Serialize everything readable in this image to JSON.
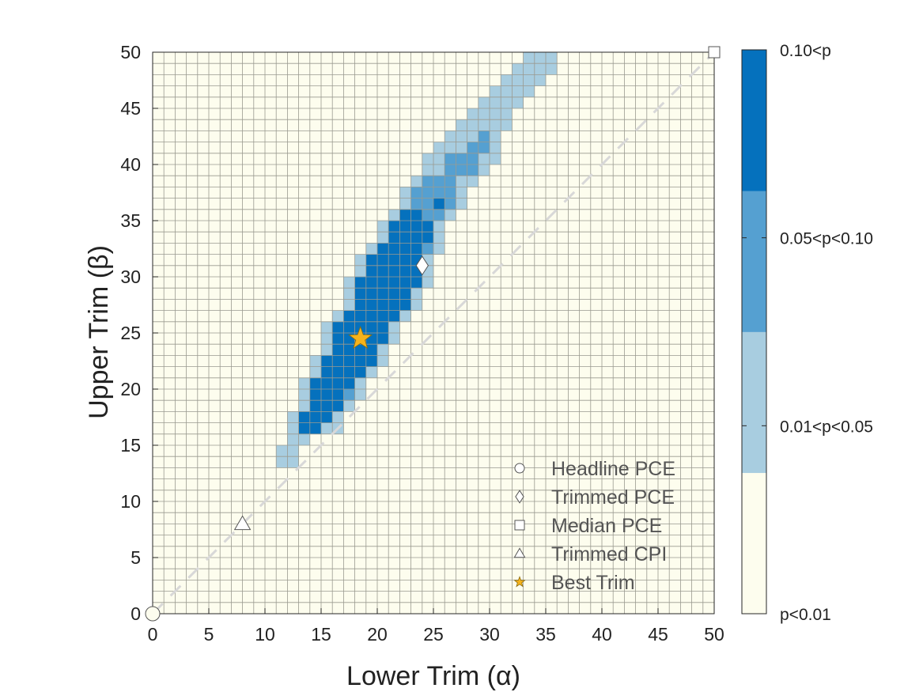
{
  "chart_data": {
    "type": "heatmap",
    "xlabel": "Lower Trim (α)",
    "ylabel": "Upper Trim (β)",
    "xlim": [
      0,
      50
    ],
    "ylim": [
      0,
      50
    ],
    "xticks": [
      "0",
      "5",
      "10",
      "15",
      "20",
      "25",
      "30",
      "35",
      "40",
      "45",
      "50"
    ],
    "yticks": [
      "0",
      "5",
      "10",
      "15",
      "20",
      "25",
      "30",
      "35",
      "40",
      "45",
      "50"
    ],
    "grid_step": 1,
    "colorbar": {
      "levels": [
        {
          "label": "p<0.01",
          "color": "#fdfdee"
        },
        {
          "label": "0.01<p<0.05",
          "color": "#a8cde0"
        },
        {
          "label": "0.05<p<0.10",
          "color": "#55a0d1"
        },
        {
          "label": "0.10<p",
          "color": "#0571bd"
        }
      ]
    },
    "cells": {
      "note": "row y (upper trim) -> list of [x_start, x_end, level] runs; unlisted cells are level 0",
      "13": [
        [
          11,
          12,
          1
        ]
      ],
      "14": [
        [
          11,
          12,
          1
        ]
      ],
      "15": [
        [
          12,
          13,
          1
        ]
      ],
      "16": [
        [
          12,
          12,
          1
        ],
        [
          13,
          14,
          3
        ],
        [
          15,
          16,
          1
        ]
      ],
      "17": [
        [
          12,
          12,
          1
        ],
        [
          13,
          15,
          3
        ],
        [
          16,
          16,
          1
        ]
      ],
      "18": [
        [
          13,
          13,
          1
        ],
        [
          14,
          16,
          3
        ],
        [
          17,
          17,
          1
        ]
      ],
      "19": [
        [
          13,
          13,
          1
        ],
        [
          14,
          16,
          3
        ],
        [
          17,
          17,
          2
        ],
        [
          18,
          18,
          1
        ]
      ],
      "20": [
        [
          13,
          13,
          1
        ],
        [
          14,
          17,
          3
        ],
        [
          18,
          18,
          1
        ]
      ],
      "21": [
        [
          14,
          14,
          1
        ],
        [
          15,
          18,
          3
        ],
        [
          19,
          19,
          1
        ]
      ],
      "22": [
        [
          14,
          14,
          1
        ],
        [
          15,
          19,
          3
        ],
        [
          20,
          20,
          1
        ]
      ],
      "23": [
        [
          15,
          15,
          1
        ],
        [
          16,
          19,
          3
        ],
        [
          20,
          20,
          1
        ]
      ],
      "24": [
        [
          15,
          15,
          1
        ],
        [
          16,
          20,
          3
        ],
        [
          21,
          21,
          1
        ]
      ],
      "25": [
        [
          15,
          15,
          1
        ],
        [
          16,
          20,
          3
        ],
        [
          21,
          21,
          1
        ]
      ],
      "26": [
        [
          16,
          16,
          1
        ],
        [
          17,
          21,
          3
        ],
        [
          22,
          22,
          1
        ]
      ],
      "27": [
        [
          17,
          17,
          1
        ],
        [
          18,
          22,
          3
        ],
        [
          23,
          23,
          1
        ]
      ],
      "28": [
        [
          17,
          17,
          1
        ],
        [
          18,
          22,
          3
        ],
        [
          23,
          23,
          1
        ]
      ],
      "29": [
        [
          17,
          17,
          1
        ],
        [
          18,
          23,
          3
        ],
        [
          24,
          24,
          1
        ]
      ],
      "30": [
        [
          18,
          18,
          1
        ],
        [
          19,
          23,
          3
        ],
        [
          24,
          24,
          1
        ]
      ],
      "31": [
        [
          18,
          18,
          1
        ],
        [
          19,
          23,
          3
        ],
        [
          24,
          24,
          1
        ]
      ],
      "32": [
        [
          19,
          19,
          1
        ],
        [
          20,
          23,
          3
        ],
        [
          24,
          24,
          2
        ],
        [
          25,
          25,
          1
        ]
      ],
      "33": [
        [
          20,
          20,
          1
        ],
        [
          21,
          24,
          3
        ],
        [
          25,
          25,
          1
        ]
      ],
      "34": [
        [
          20,
          20,
          1
        ],
        [
          21,
          24,
          3
        ],
        [
          25,
          25,
          1
        ]
      ],
      "35": [
        [
          21,
          21,
          1
        ],
        [
          22,
          23,
          3
        ],
        [
          24,
          25,
          2
        ],
        [
          26,
          26,
          1
        ]
      ],
      "36": [
        [
          22,
          22,
          1
        ],
        [
          23,
          24,
          2
        ],
        [
          25,
          25,
          3
        ],
        [
          26,
          26,
          2
        ],
        [
          27,
          27,
          1
        ]
      ],
      "37": [
        [
          22,
          22,
          1
        ],
        [
          23,
          26,
          2
        ],
        [
          27,
          27,
          1
        ]
      ],
      "38": [
        [
          23,
          23,
          1
        ],
        [
          24,
          26,
          2
        ],
        [
          27,
          28,
          1
        ]
      ],
      "39": [
        [
          24,
          25,
          1
        ],
        [
          26,
          28,
          2
        ],
        [
          29,
          29,
          1
        ]
      ],
      "40": [
        [
          24,
          25,
          1
        ],
        [
          26,
          28,
          2
        ],
        [
          29,
          30,
          1
        ]
      ],
      "41": [
        [
          25,
          27,
          1
        ],
        [
          28,
          29,
          2
        ],
        [
          30,
          30,
          1
        ]
      ],
      "42": [
        [
          26,
          28,
          1
        ],
        [
          29,
          29,
          2
        ],
        [
          30,
          30,
          1
        ]
      ],
      "43": [
        [
          27,
          31,
          1
        ]
      ],
      "44": [
        [
          28,
          31,
          1
        ]
      ],
      "45": [
        [
          29,
          32,
          1
        ]
      ],
      "46": [
        [
          30,
          33,
          1
        ]
      ],
      "47": [
        [
          31,
          34,
          1
        ]
      ],
      "48": [
        [
          32,
          35,
          1
        ]
      ],
      "49": [
        [
          33,
          35,
          1
        ]
      ]
    },
    "diagonal_line": {
      "from": [
        0,
        0
      ],
      "to": [
        50,
        50
      ],
      "style": "dashed",
      "color": "#d8d8d8"
    },
    "markers": [
      {
        "name": "Headline PCE",
        "shape": "circle",
        "x": 0,
        "y": 0,
        "fill": "#fdfdee"
      },
      {
        "name": "Trimmed PCE",
        "shape": "diamond",
        "x": 24,
        "y": 31,
        "fill": "#ffffff"
      },
      {
        "name": "Median PCE",
        "shape": "square",
        "x": 50,
        "y": 50,
        "fill": "#ffffff"
      },
      {
        "name": "Trimmed CPI",
        "shape": "triangle",
        "x": 8,
        "y": 8,
        "fill": "#ffffff"
      },
      {
        "name": "Best Trim",
        "shape": "star",
        "x": 18.5,
        "y": 24.5,
        "fill": "#f6b31b"
      }
    ],
    "legend": {
      "placement": "bottom-right",
      "entries": [
        {
          "label": "Headline PCE",
          "shape": "circle"
        },
        {
          "label": "Trimmed PCE",
          "shape": "diamond"
        },
        {
          "label": "Median PCE",
          "shape": "square"
        },
        {
          "label": "Trimmed CPI",
          "shape": "triangle"
        },
        {
          "label": "Best Trim",
          "shape": "star"
        }
      ]
    }
  }
}
